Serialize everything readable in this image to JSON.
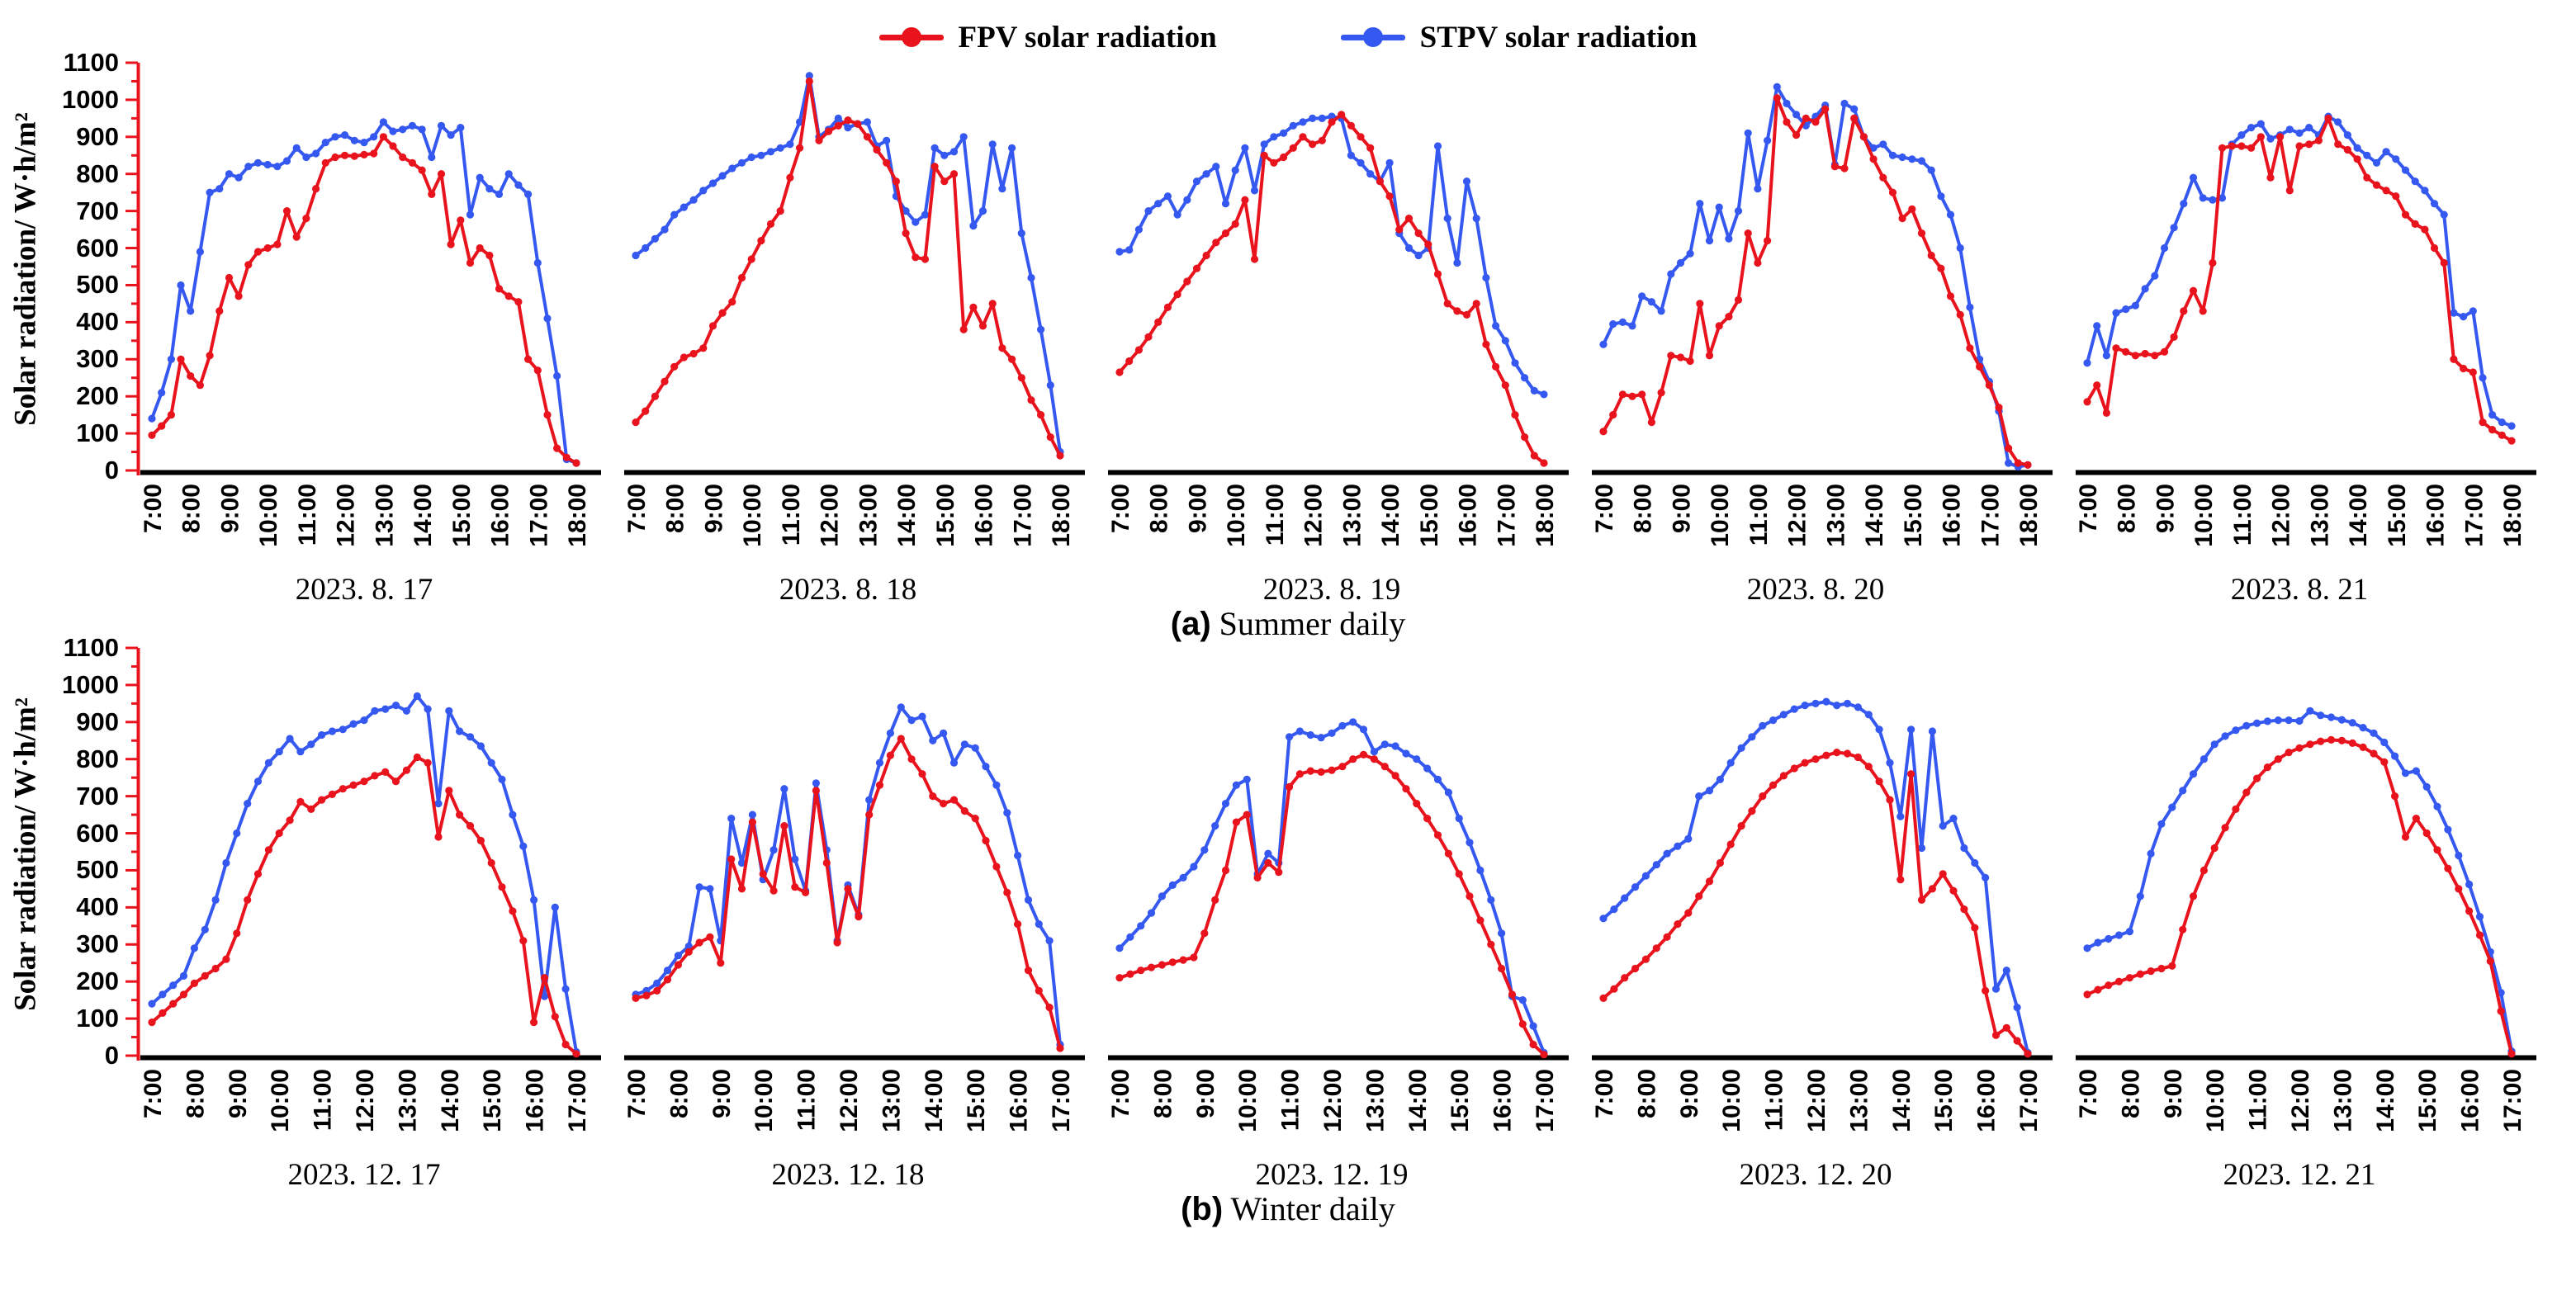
{
  "legend": [
    {
      "name": "fpv",
      "label": "FPV solar radiation",
      "color": "#e8131c"
    },
    {
      "name": "stpv",
      "label": "STPV solar radiation",
      "color": "#3558f0"
    }
  ],
  "y_axis": {
    "title": "Solar radiation/ W·h/m²",
    "min": 0,
    "max": 1100,
    "major_step": 100,
    "minor_step": 50,
    "spine_color": "#e8131c"
  },
  "x_axis": {
    "spine_color": "#000000"
  },
  "chart_data": {
    "type": "line",
    "series_names": [
      "FPV solar radiation",
      "STPV solar radiation"
    ],
    "series_colors": {
      "FPV": "#e8131c",
      "STPV": "#3558f0"
    },
    "ylim": [
      0,
      1100
    ],
    "grid": false,
    "legend_position": "top-center",
    "rows": [
      {
        "caption_prefix": "(a)",
        "caption_text": " Summer daily",
        "x_ticks": [
          "7:00",
          "8:00",
          "9:00",
          "10:00",
          "11:00",
          "12:00",
          "13:00",
          "14:00",
          "15:00",
          "16:00",
          "17:00",
          "18:00"
        ],
        "start_minute": 0,
        "total_minutes": 660,
        "sample_interval_min": 15,
        "panels": [
          {
            "date": "2023. 8. 17",
            "FPV": [
              95,
              120,
              150,
              300,
              255,
              230,
              310,
              430,
              520,
              470,
              555,
              590,
              600,
              610,
              700,
              630,
              680,
              760,
              830,
              845,
              850,
              848,
              852,
              855,
              900,
              875,
              845,
              830,
              810,
              745,
              800,
              610,
              675,
              560,
              600,
              580,
              490,
              470,
              455,
              300,
              270,
              150,
              60,
              35,
              20
            ],
            "STPV": [
              140,
              210,
              300,
              500,
              430,
              590,
              750,
              760,
              800,
              790,
              820,
              830,
              825,
              820,
              835,
              870,
              845,
              855,
              885,
              900,
              905,
              890,
              885,
              900,
              940,
              915,
              920,
              930,
              920,
              845,
              930,
              905,
              925,
              690,
              790,
              760,
              745,
              800,
              770,
              745,
              560,
              410,
              255,
              30,
              20
            ]
          },
          {
            "date": "2023. 8. 18",
            "FPV": [
              130,
              160,
              200,
              240,
              280,
              305,
              315,
              330,
              390,
              425,
              455,
              520,
              570,
              620,
              665,
              700,
              790,
              870,
              1050,
              890,
              915,
              930,
              945,
              935,
              900,
              865,
              830,
              780,
              640,
              575,
              570,
              820,
              780,
              800,
              380,
              440,
              390,
              450,
              330,
              300,
              250,
              190,
              150,
              90,
              40
            ],
            "STPV": [
              580,
              600,
              625,
              650,
              690,
              710,
              730,
              755,
              775,
              795,
              815,
              830,
              845,
              850,
              860,
              870,
              880,
              940,
              1065,
              900,
              920,
              950,
              925,
              935,
              940,
              875,
              890,
              740,
              700,
              670,
              690,
              870,
              850,
              860,
              900,
              660,
              700,
              880,
              760,
              870,
              640,
              520,
              380,
              230,
              50
            ]
          },
          {
            "date": "2023. 8. 19",
            "FPV": [
              265,
              295,
              325,
              360,
              400,
              440,
              475,
              510,
              545,
              580,
              615,
              640,
              665,
              730,
              570,
              850,
              830,
              845,
              870,
              900,
              880,
              890,
              940,
              960,
              930,
              900,
              870,
              780,
              740,
              650,
              680,
              640,
              610,
              530,
              450,
              430,
              420,
              450,
              340,
              280,
              230,
              150,
              90,
              40,
              20
            ],
            "STPV": [
              590,
              595,
              650,
              700,
              720,
              740,
              690,
              730,
              780,
              800,
              820,
              720,
              810,
              870,
              755,
              880,
              900,
              910,
              930,
              940,
              950,
              950,
              955,
              950,
              850,
              830,
              800,
              780,
              830,
              640,
              600,
              580,
              600,
              875,
              680,
              560,
              780,
              680,
              520,
              390,
              350,
              290,
              250,
              215,
              205
            ]
          },
          {
            "date": "2023. 8. 20",
            "FPV": [
              105,
              150,
              205,
              200,
              205,
              130,
              210,
              310,
              305,
              295,
              450,
              310,
              390,
              415,
              460,
              640,
              560,
              620,
              1005,
              940,
              905,
              950,
              940,
              975,
              820,
              815,
              950,
              900,
              840,
              790,
              750,
              680,
              705,
              640,
              580,
              545,
              470,
              420,
              330,
              280,
              230,
              170,
              60,
              20,
              15
            ],
            "STPV": [
              340,
              395,
              400,
              390,
              470,
              455,
              430,
              530,
              560,
              585,
              720,
              620,
              710,
              625,
              700,
              910,
              760,
              890,
              1035,
              990,
              960,
              930,
              955,
              985,
              825,
              990,
              975,
              900,
              870,
              880,
              850,
              845,
              840,
              835,
              810,
              740,
              690,
              600,
              440,
              300,
              240,
              160,
              20,
              10,
              15
            ]
          },
          {
            "date": "2023. 8. 21",
            "FPV": [
              185,
              230,
              155,
              330,
              320,
              310,
              315,
              310,
              320,
              360,
              430,
              485,
              430,
              560,
              870,
              875,
              875,
              870,
              900,
              790,
              900,
              755,
              875,
              880,
              890,
              950,
              880,
              865,
              840,
              790,
              770,
              755,
              740,
              690,
              665,
              650,
              600,
              560,
              300,
              275,
              265,
              130,
              110,
              95,
              80
            ],
            "STPV": [
              290,
              390,
              310,
              425,
              435,
              445,
              490,
              525,
              600,
              655,
              720,
              790,
              735,
              730,
              735,
              880,
              905,
              925,
              935,
              895,
              905,
              920,
              910,
              925,
              905,
              955,
              940,
              905,
              870,
              850,
              830,
              860,
              840,
              810,
              780,
              755,
              720,
              690,
              425,
              415,
              430,
              250,
              150,
              130,
              120
            ]
          }
        ]
      },
      {
        "caption_prefix": "(b)",
        "caption_text": " Winter daily",
        "x_ticks": [
          "7:00",
          "8:00",
          "9:00",
          "10:00",
          "11:00",
          "12:00",
          "13:00",
          "14:00",
          "15:00",
          "16:00",
          "17:00"
        ],
        "start_minute": 0,
        "total_minutes": 600,
        "sample_interval_min": 15,
        "panels": [
          {
            "date": "2023. 12. 17",
            "FPV": [
              90,
              115,
              140,
              165,
              195,
              215,
              235,
              260,
              330,
              420,
              490,
              555,
              600,
              635,
              685,
              665,
              690,
              705,
              720,
              730,
              740,
              755,
              765,
              740,
              770,
              805,
              790,
              590,
              715,
              650,
              620,
              580,
              520,
              455,
              390,
              310,
              90,
              210,
              105,
              30,
              5
            ],
            "STPV": [
              140,
              165,
              190,
              215,
              290,
              340,
              420,
              520,
              600,
              680,
              740,
              790,
              820,
              855,
              820,
              840,
              865,
              875,
              880,
              895,
              905,
              930,
              935,
              945,
              930,
              970,
              935,
              680,
              930,
              875,
              860,
              835,
              790,
              745,
              650,
              565,
              420,
              160,
              400,
              180,
              10
            ]
          },
          {
            "date": "2023. 12. 18",
            "FPV": [
              155,
              162,
              175,
              205,
              245,
              280,
              305,
              320,
              250,
              530,
              450,
              630,
              490,
              445,
              620,
              455,
              440,
              715,
              520,
              305,
              450,
              375,
              650,
              730,
              810,
              855,
              800,
              760,
              700,
              680,
              690,
              660,
              640,
              580,
              510,
              440,
              355,
              230,
              175,
              130,
              20
            ],
            "STPV": [
              165,
              175,
              195,
              230,
              270,
              295,
              455,
              450,
              310,
              640,
              520,
              650,
              475,
              555,
              720,
              530,
              445,
              735,
              555,
              310,
              460,
              380,
              690,
              790,
              870,
              940,
              905,
              915,
              850,
              870,
              790,
              840,
              830,
              780,
              730,
              655,
              540,
              420,
              355,
              310,
              30
            ]
          },
          {
            "date": "2023. 12. 19",
            "FPV": [
              210,
              220,
              230,
              238,
              245,
              252,
              258,
              265,
              330,
              420,
              500,
              630,
              650,
              480,
              520,
              495,
              725,
              760,
              768,
              765,
              770,
              780,
              800,
              812,
              800,
              780,
              755,
              720,
              680,
              640,
              595,
              545,
              490,
              430,
              365,
              300,
              235,
              165,
              85,
              30,
              3
            ],
            "STPV": [
              290,
              320,
              350,
              385,
              430,
              460,
              480,
              510,
              555,
              620,
              680,
              730,
              745,
              490,
              545,
              520,
              860,
              875,
              865,
              858,
              870,
              890,
              900,
              880,
              820,
              840,
              835,
              815,
              800,
              775,
              745,
              710,
              640,
              575,
              500,
              420,
              330,
              160,
              150,
              80,
              8
            ]
          },
          {
            "date": "2023. 12. 20",
            "FPV": [
              155,
              180,
              210,
              235,
              260,
              290,
              320,
              355,
              385,
              430,
              470,
              520,
              570,
              620,
              660,
              700,
              730,
              755,
              775,
              790,
              800,
              810,
              818,
              815,
              805,
              780,
              740,
              690,
              475,
              760,
              420,
              450,
              490,
              445,
              395,
              345,
              175,
              55,
              75,
              40,
              5
            ],
            "STPV": [
              370,
              395,
              425,
              455,
              485,
              515,
              545,
              565,
              585,
              700,
              715,
              745,
              790,
              830,
              860,
              890,
              905,
              920,
              935,
              945,
              950,
              955,
              945,
              950,
              940,
              920,
              880,
              790,
              645,
              880,
              560,
              875,
              620,
              640,
              560,
              520,
              480,
              180,
              230,
              130,
              8
            ]
          },
          {
            "date": "2023. 12. 21",
            "FPV": [
              165,
              178,
              190,
              200,
              210,
              220,
              228,
              235,
              242,
              340,
              430,
              500,
              560,
              615,
              665,
              710,
              748,
              778,
              800,
              818,
              830,
              840,
              848,
              852,
              850,
              843,
              832,
              815,
              792,
              700,
              590,
              640,
              600,
              555,
              505,
              450,
              390,
              325,
              255,
              120,
              5
            ],
            "STPV": [
              290,
              305,
              315,
              325,
              335,
              430,
              545,
              625,
              670,
              715,
              760,
              800,
              840,
              862,
              878,
              890,
              897,
              902,
              905,
              905,
              903,
              930,
              918,
              913,
              906,
              898,
              885,
              870,
              845,
              808,
              762,
              768,
              725,
              672,
              610,
              540,
              462,
              375,
              280,
              170,
              12
            ]
          }
        ]
      }
    ]
  }
}
